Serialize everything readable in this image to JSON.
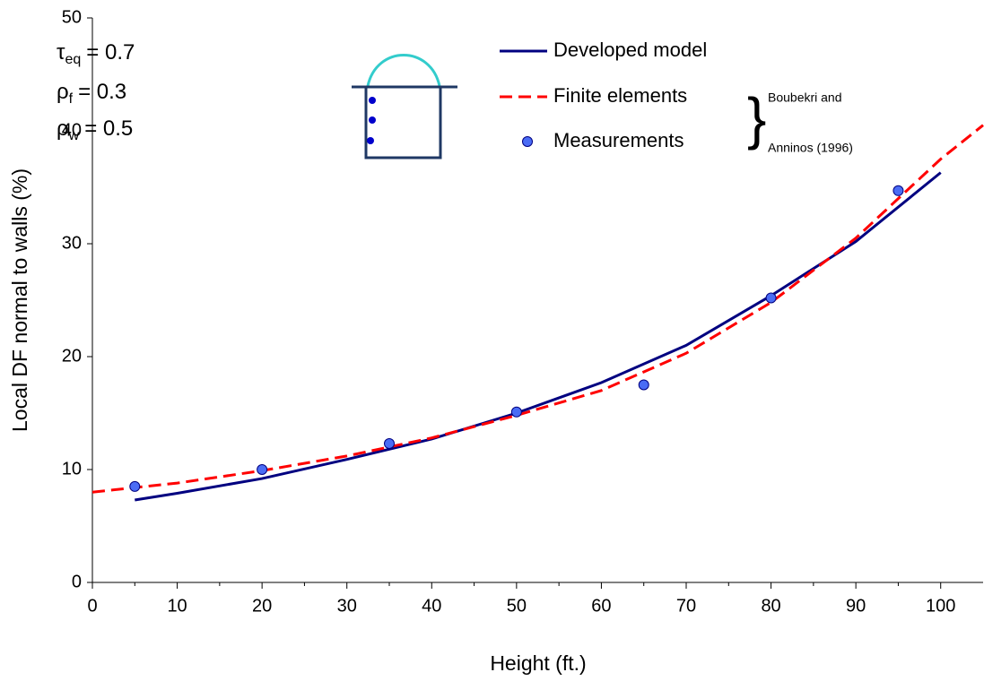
{
  "chart_data": {
    "type": "line",
    "xlabel": "Height (ft.)",
    "ylabel": "Local DF normal to walls  (%)",
    "xlim": [
      0,
      105
    ],
    "ylim": [
      0,
      50
    ],
    "xticks": [
      0,
      10,
      20,
      30,
      40,
      50,
      60,
      70,
      80,
      90,
      100
    ],
    "xminorticks": [
      5,
      15,
      25,
      35,
      45,
      55,
      65,
      75,
      85,
      95
    ],
    "yticks": [
      0,
      10,
      20,
      30,
      40,
      50
    ],
    "series": [
      {
        "name": "Developed model",
        "color": "#000080",
        "style": "solid",
        "x": [
          5,
          10,
          20,
          30,
          40,
          50,
          60,
          70,
          80,
          90,
          100
        ],
        "values": [
          7.3,
          7.9,
          9.2,
          10.9,
          12.7,
          15.0,
          17.7,
          21.0,
          25.4,
          30.2,
          36.3
        ]
      },
      {
        "name": "Finite elements",
        "color": "#ff0000",
        "style": "dashed",
        "x": [
          0,
          10,
          20,
          30,
          40,
          50,
          60,
          70,
          80,
          90,
          100,
          105
        ],
        "values": [
          8.0,
          8.8,
          9.9,
          11.2,
          12.8,
          14.8,
          17.0,
          20.3,
          24.8,
          30.5,
          37.5,
          40.5
        ]
      },
      {
        "name": "Measurements",
        "color": "#4a6cf5",
        "style": "markers",
        "x": [
          5,
          20,
          35,
          50,
          65,
          80,
          95
        ],
        "values": [
          8.5,
          10.0,
          12.3,
          15.1,
          17.5,
          25.2,
          34.7
        ]
      }
    ],
    "source": [
      "Boubekri and",
      "Anninos (1996)"
    ],
    "annotations": [
      {
        "symbol": "τ",
        "subscript": "eq",
        "text": "= 0.7"
      },
      {
        "symbol": "ρ",
        "subscript": "f",
        "text": "= 0.3"
      },
      {
        "symbol": "ρ",
        "subscript": "w",
        "text": "= 0.5"
      }
    ]
  }
}
